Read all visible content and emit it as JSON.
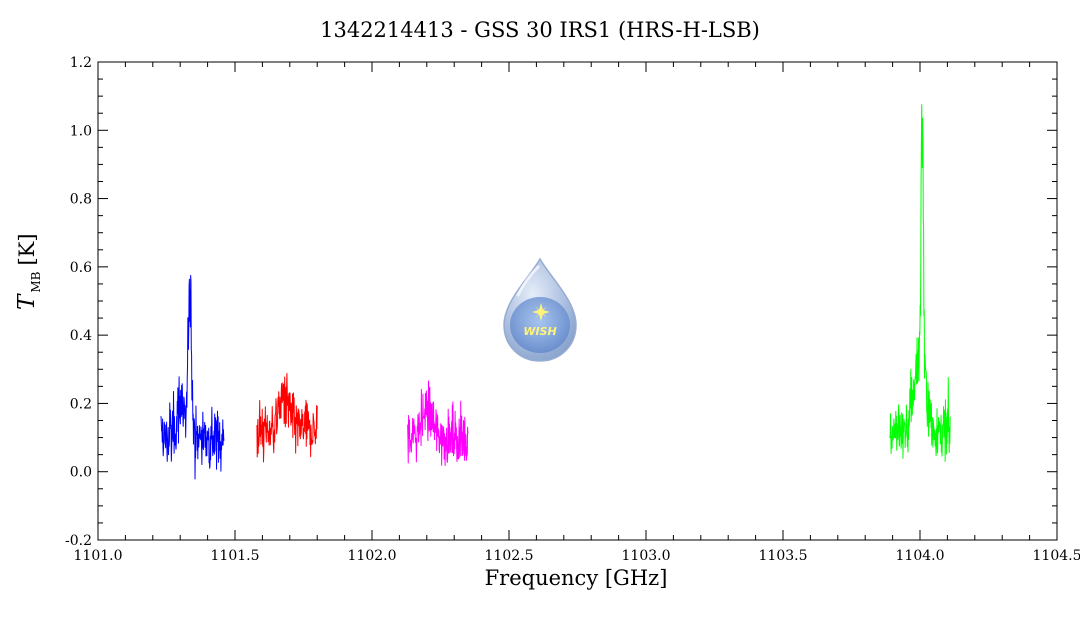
{
  "chart_data": {
    "type": "line",
    "title": "1342214413 - GSS 30 IRS1 (HRS-H-LSB)",
    "xlabel": "Frequency [GHz]",
    "ylabel": {
      "symbol": "T",
      "subscript": "MB",
      "unit": "[K]"
    },
    "xlim": [
      1101.0,
      1104.5
    ],
    "ylim": [
      -0.2,
      1.2
    ],
    "x_ticks": [
      "1101.0",
      "1101.5",
      "1102.0",
      "1102.5",
      "1103.0",
      "1103.5",
      "1104.0",
      "1104.5"
    ],
    "y_ticks": [
      "-0.2",
      "0.0",
      "0.2",
      "0.4",
      "0.6",
      "0.8",
      "1.0",
      "1.2"
    ],
    "grid": false,
    "series": [
      {
        "color": "#0000ff",
        "x_range": [
          1101.23,
          1101.46
        ],
        "baseline": 0.1,
        "noise": 0.08,
        "peaks": [
          {
            "x": 1101.335,
            "height": 0.62,
            "width": 0.006
          },
          {
            "x": 1101.3,
            "height": 0.15,
            "width": 0.01
          }
        ]
      },
      {
        "color": "#ff0000",
        "x_range": [
          1101.58,
          1101.8
        ],
        "baseline": 0.12,
        "noise": 0.07,
        "peaks": [
          {
            "x": 1101.68,
            "height": 0.12,
            "width": 0.02
          }
        ]
      },
      {
        "color": "#ff00ff",
        "x_range": [
          1102.13,
          1102.35
        ],
        "baseline": 0.1,
        "noise": 0.065,
        "peaks": [
          {
            "x": 1102.2,
            "height": 0.1,
            "width": 0.02
          }
        ]
      },
      {
        "color": "#00ff00",
        "x_range": [
          1103.89,
          1104.11
        ],
        "baseline": 0.12,
        "noise": 0.075,
        "peaks": [
          {
            "x": 1104.008,
            "height": 0.9,
            "width": 0.004
          },
          {
            "x": 1104.0,
            "height": 0.3,
            "width": 0.02
          }
        ]
      }
    ]
  },
  "logo": {
    "text": "WISH",
    "colors": {
      "drop": "#a9bde0",
      "inner": "#6f94d6",
      "star": "#fff37a"
    }
  }
}
